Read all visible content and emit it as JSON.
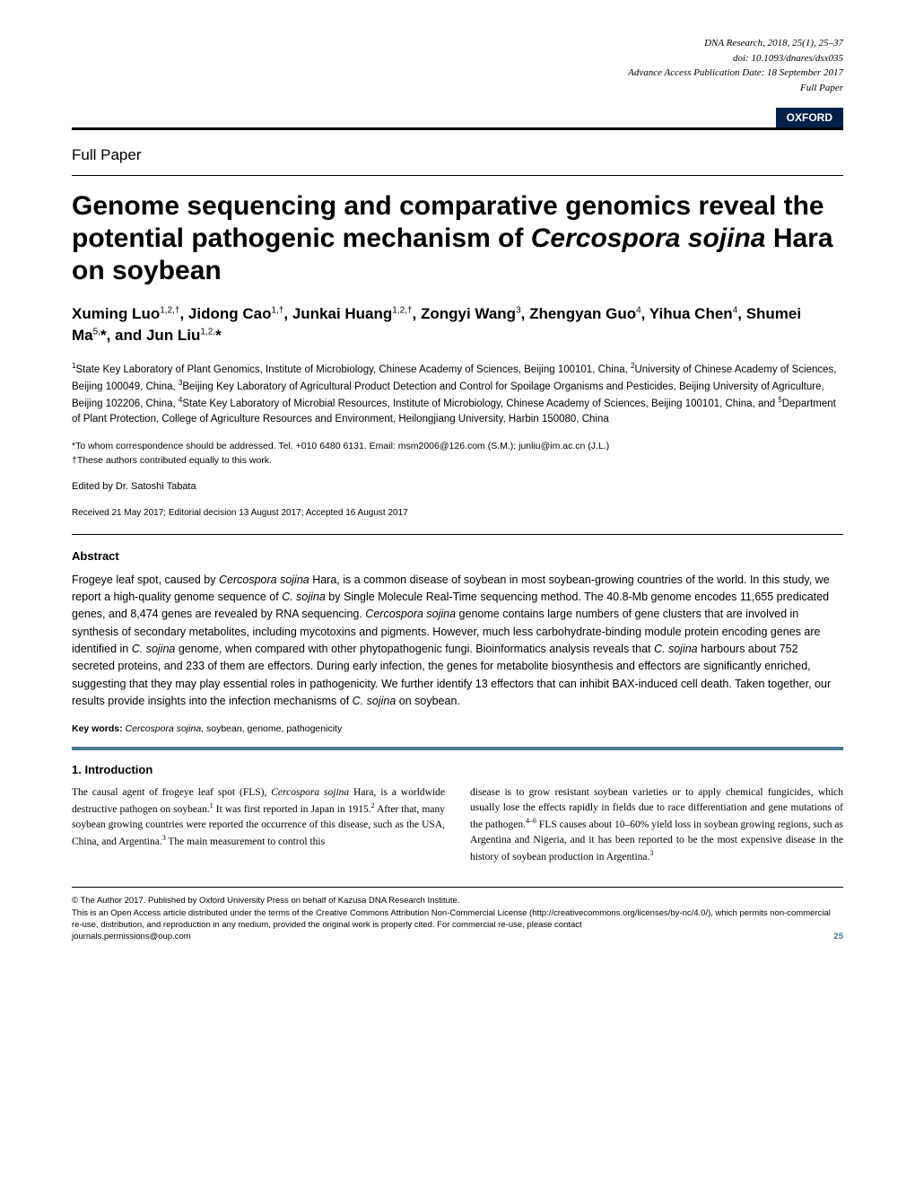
{
  "header": {
    "journal": "DNA Research",
    "year_vol": "2018, 25(1), 25–37",
    "doi": "doi: 10.1093/dnares/dsx035",
    "advance": "Advance Access Publication Date: 18 September 2017",
    "type": "Full Paper",
    "publisher_badge": "OXFORD"
  },
  "section_label": "Full Paper",
  "title_part1": "Genome sequencing and comparative genomics reveal the potential pathogenic mechanism of ",
  "title_italic": "Cercospora sojina",
  "title_part2": " Hara on soybean",
  "authors_html": "Xuming Luo<sup>1,2,†</sup>, Jidong Cao<sup>1,†</sup>, Junkai Huang<sup>1,2,†</sup>, Zongyi Wang<sup>3</sup>, Zhengyan Guo<sup>4</sup>, Yihua Chen<sup>4</sup>, Shumei Ma<sup>5,</sup>*, and Jun Liu<sup>1,2,</sup>*",
  "affiliations_html": "<sup>1</sup>State Key Laboratory of Plant Genomics, Institute of Microbiology, Chinese Academy of Sciences, Beijing 100101, China, <sup>2</sup>University of Chinese Academy of Sciences, Beijing 100049, China, <sup>3</sup>Beijing Key Laboratory of Agricultural Product Detection and Control for Spoilage Organisms and Pesticides, Beijing University of Agriculture, Beijing 102206, China, <sup>4</sup>State Key Laboratory of Microbial Resources, Institute of Microbiology, Chinese Academy of Sciences, Beijing 100101, China, and <sup>5</sup>Department of Plant Protection, College of Agriculture Resources and Environment, Heilongjiang University, Harbin 150080, China",
  "correspondence": "*To whom correspondence should be addressed. Tel. +010 6480 6131. Email: msm2006@126.com (S.M.); junliu@im.ac.cn (J.L.)",
  "equal_contrib": "†These authors contributed equally to this work.",
  "editor": "Edited by Dr. Satoshi Tabata",
  "dates": "Received 21 May 2017; Editorial decision 13 August 2017; Accepted 16 August 2017",
  "abstract_heading": "Abstract",
  "abstract_html": "Frogeye leaf spot, caused by <span class=\"italic\">Cercospora sojina</span> Hara, is a common disease of soybean in most soybean-growing countries of the world. In this study, we report a high-quality genome sequence of <span class=\"italic\">C. sojina</span> by Single Molecule Real-Time sequencing method. The 40.8-Mb genome encodes 11,655 predicated genes, and 8,474 genes are revealed by RNA sequencing. <span class=\"italic\">Cercospora sojina</span> genome contains large numbers of gene clusters that are involved in synthesis of secondary metabolites, including mycotoxins and pigments. However, much less carbohydrate-binding module protein encoding genes are identified in <span class=\"italic\">C. sojina</span> genome, when compared with other phytopathogenic fungi. Bioinformatics analysis reveals that <span class=\"italic\">C. sojina</span> harbours about 752 secreted proteins, and 233 of them are effectors. During early infection, the genes for metabolite biosynthesis and effectors are significantly enriched, suggesting that they may play essential roles in pathogenicity. We further identify 13 effectors that can inhibit BAX-induced cell death. Taken together, our results provide insights into the infection mechanisms of <span class=\"italic\">C. sojina</span> on soybean.",
  "keywords_label": "Key words:",
  "keywords_html": "<span class=\"italic\">Cercospora sojina</span>, soybean, genome, pathogenicity",
  "intro_heading": "1. Introduction",
  "intro_col1_html": "The causal agent of frogeye leaf spot (FLS), <span class=\"italic\">Cercospora sojina</span> Hara, is a worldwide destructive pathogen on soybean.<sup>1</sup> It was first reported in Japan in 1915.<sup>2</sup> After that, many soybean growing countries were reported the occurrence of this disease, such as the USA, China, and Argentina.<sup>3</sup> The main measurement to control this",
  "intro_col2_html": "disease is to grow resistant soybean varieties or to apply chemical fungicides, which usually lose the effects rapidly in fields due to race differentiation and gene mutations of the pathogen.<sup>4–6</sup> FLS causes about 10–60% yield loss in soybean growing regions, such as Argentina and Nigeria, and it has been reported to be the most expensive disease in the history of soybean production in Argentina.<sup>3</sup>",
  "footer": {
    "copyright": "© The Author 2017. Published by Oxford University Press on behalf of Kazusa DNA Research Institute.",
    "license": "This is an Open Access article distributed under the terms of the Creative Commons Attribution Non-Commercial License (http://creativecommons.org/licenses/by-nc/4.0/), which permits non-commercial re-use, distribution, and reproduction in any medium, provided the original work is properly cited. For commercial re-use, please contact",
    "permissions": "journals.permissions@oup.com",
    "page_num": "25"
  }
}
